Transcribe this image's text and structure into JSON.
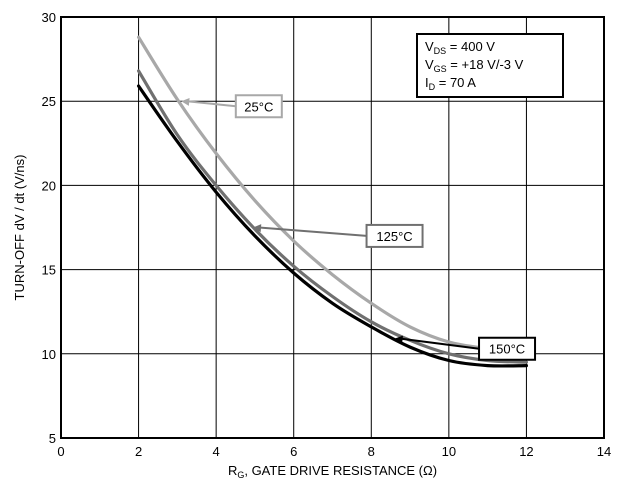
{
  "chart_data": {
    "type": "line",
    "xlabel": {
      "main": "R",
      "sub": "G",
      "rest": ", GATE DRIVE RESISTANCE (Ω)"
    },
    "ylabel": "TURN-OFF  dV / dt  (V/ns)",
    "xlim": [
      0,
      14
    ],
    "ylim": [
      5,
      30
    ],
    "x_ticks": [
      "0",
      "2",
      "4",
      "6",
      "8",
      "10",
      "12",
      "14"
    ],
    "y_ticks": [
      "5",
      "10",
      "15",
      "20",
      "25",
      "30"
    ],
    "grid": true,
    "conditions": [
      {
        "main": "V",
        "sub": "DS",
        "rest": " = 400 V"
      },
      {
        "main": "V",
        "sub": "GS",
        "rest": " = +18 V/-3 V"
      },
      {
        "main": "I",
        "sub": "D",
        "rest": " = 70 A"
      }
    ],
    "series": [
      {
        "name": "25°C",
        "color": "#a8a8a8",
        "x": [
          2,
          3,
          4,
          5,
          6,
          7,
          8,
          9,
          10,
          11
        ],
        "y": [
          28.8,
          25.1,
          21.9,
          19.1,
          16.7,
          14.7,
          13.0,
          11.6,
          10.7,
          10.3
        ]
      },
      {
        "name": "125°C",
        "color": "#707070",
        "x": [
          2,
          3,
          4,
          5,
          6,
          7,
          8,
          9,
          10,
          11,
          12
        ],
        "y": [
          26.8,
          23.0,
          20.0,
          17.4,
          15.2,
          13.4,
          11.9,
          10.8,
          10.0,
          9.6,
          9.5
        ]
      },
      {
        "name": "150°C",
        "color": "#000000",
        "x": [
          2,
          3,
          4,
          5,
          6,
          7,
          8,
          9,
          10,
          11,
          12
        ],
        "y": [
          25.9,
          22.6,
          19.6,
          17.0,
          14.8,
          13.0,
          11.6,
          10.4,
          9.6,
          9.3,
          9.3
        ]
      }
    ],
    "callouts": [
      {
        "series": "25°C",
        "arrow_to": [
          3.1,
          25.0
        ],
        "box_at": [
          5.1,
          24.7
        ]
      },
      {
        "series": "125°C",
        "arrow_to": [
          4.95,
          17.5
        ],
        "box_at": [
          8.6,
          17.0
        ]
      },
      {
        "series": "150°C",
        "arrow_to": [
          8.6,
          10.9
        ],
        "box_at": [
          11.5,
          10.3
        ]
      }
    ]
  }
}
